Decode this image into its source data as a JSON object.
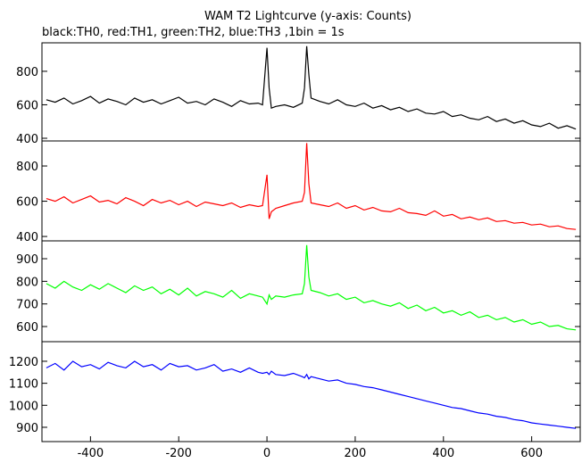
{
  "chart_data": [
    {
      "type": "line",
      "title": "WAM T2 Lightcurve (y-axis: Counts)",
      "subtitle": "black:TH0, red:TH1, green:TH2, blue:TH3 ,1bin = 1s",
      "x": [
        -500,
        -480,
        -460,
        -440,
        -420,
        -400,
        -380,
        -360,
        -340,
        -320,
        -300,
        -280,
        -260,
        -240,
        -220,
        -200,
        -180,
        -160,
        -140,
        -120,
        -100,
        -80,
        -60,
        -40,
        -20,
        -10,
        0,
        5,
        10,
        20,
        40,
        60,
        80,
        85,
        90,
        95,
        100,
        120,
        140,
        160,
        180,
        200,
        220,
        240,
        260,
        280,
        300,
        320,
        340,
        360,
        380,
        400,
        420,
        440,
        460,
        480,
        500,
        520,
        540,
        560,
        580,
        600,
        620,
        640,
        660,
        680,
        700
      ],
      "series": [
        {
          "color": "#000000",
          "values": [
            630,
            615,
            640,
            605,
            625,
            650,
            610,
            635,
            620,
            600,
            640,
            615,
            630,
            605,
            625,
            645,
            610,
            620,
            600,
            635,
            615,
            590,
            625,
            605,
            610,
            600,
            940,
            700,
            580,
            590,
            600,
            585,
            610,
            700,
            950,
            780,
            640,
            620,
            605,
            630,
            600,
            590,
            610,
            580,
            595,
            570,
            585,
            560,
            575,
            550,
            545,
            560,
            530,
            540,
            520,
            510,
            530,
            500,
            515,
            490,
            505,
            480,
            470,
            490,
            460,
            475,
            455
          ]
        }
      ],
      "xlim": [
        -510,
        710
      ],
      "ylim": [
        384,
        970
      ],
      "yticks": [
        400,
        600,
        800
      ]
    },
    {
      "type": "line",
      "x": [
        -500,
        -480,
        -460,
        -440,
        -420,
        -400,
        -380,
        -360,
        -340,
        -320,
        -300,
        -280,
        -260,
        -240,
        -220,
        -200,
        -180,
        -160,
        -140,
        -120,
        -100,
        -80,
        -60,
        -40,
        -20,
        -10,
        0,
        5,
        10,
        20,
        40,
        60,
        80,
        85,
        90,
        95,
        100,
        120,
        140,
        160,
        180,
        200,
        220,
        240,
        260,
        280,
        300,
        320,
        340,
        360,
        380,
        400,
        420,
        440,
        460,
        480,
        500,
        520,
        540,
        560,
        580,
        600,
        620,
        640,
        660,
        680,
        700
      ],
      "series": [
        {
          "color": "#ff0000",
          "values": [
            615,
            600,
            625,
            590,
            610,
            630,
            595,
            605,
            585,
            620,
            600,
            575,
            610,
            590,
            605,
            580,
            600,
            570,
            595,
            585,
            575,
            590,
            565,
            580,
            570,
            575,
            750,
            500,
            540,
            560,
            575,
            590,
            600,
            650,
            930,
            700,
            590,
            580,
            570,
            590,
            560,
            575,
            550,
            565,
            545,
            540,
            560,
            535,
            530,
            520,
            545,
            515,
            525,
            500,
            510,
            495,
            505,
            485,
            490,
            475,
            480,
            465,
            470,
            455,
            460,
            445,
            440
          ]
        }
      ],
      "xlim": [
        -510,
        710
      ],
      "ylim": [
        375,
        942
      ],
      "yticks": [
        400,
        600,
        800
      ]
    },
    {
      "type": "line",
      "x": [
        -500,
        -480,
        -460,
        -440,
        -420,
        -400,
        -380,
        -360,
        -340,
        -320,
        -300,
        -280,
        -260,
        -240,
        -220,
        -200,
        -180,
        -160,
        -140,
        -120,
        -100,
        -80,
        -60,
        -40,
        -20,
        -10,
        0,
        5,
        10,
        20,
        40,
        60,
        80,
        85,
        90,
        95,
        100,
        120,
        140,
        160,
        180,
        200,
        220,
        240,
        260,
        280,
        300,
        320,
        340,
        360,
        380,
        400,
        420,
        440,
        460,
        480,
        500,
        520,
        540,
        560,
        580,
        600,
        620,
        640,
        660,
        680,
        700
      ],
      "series": [
        {
          "color": "#00ff00",
          "values": [
            790,
            770,
            800,
            775,
            760,
            785,
            765,
            790,
            770,
            750,
            780,
            760,
            775,
            745,
            765,
            740,
            770,
            735,
            755,
            745,
            730,
            760,
            725,
            745,
            735,
            730,
            700,
            740,
            720,
            735,
            730,
            740,
            745,
            790,
            960,
            820,
            760,
            750,
            735,
            745,
            720,
            730,
            705,
            715,
            700,
            690,
            705,
            680,
            695,
            670,
            685,
            660,
            670,
            650,
            665,
            640,
            650,
            630,
            640,
            620,
            630,
            610,
            620,
            600,
            605,
            590,
            585
          ]
        }
      ],
      "xlim": [
        -510,
        710
      ],
      "ylim": [
        533,
        979
      ],
      "yticks": [
        600,
        700,
        800,
        900
      ]
    },
    {
      "type": "line",
      "x": [
        -500,
        -480,
        -460,
        -440,
        -420,
        -400,
        -380,
        -360,
        -340,
        -320,
        -300,
        -280,
        -260,
        -240,
        -220,
        -200,
        -180,
        -160,
        -140,
        -120,
        -100,
        -80,
        -60,
        -40,
        -20,
        -10,
        0,
        5,
        10,
        20,
        40,
        60,
        80,
        85,
        90,
        95,
        100,
        120,
        140,
        160,
        180,
        200,
        220,
        240,
        260,
        280,
        300,
        320,
        340,
        360,
        380,
        400,
        420,
        440,
        460,
        480,
        500,
        520,
        540,
        560,
        580,
        600,
        620,
        640,
        660,
        680,
        700
      ],
      "series": [
        {
          "color": "#0000ff",
          "values": [
            1170,
            1190,
            1160,
            1200,
            1175,
            1185,
            1165,
            1195,
            1180,
            1170,
            1200,
            1175,
            1185,
            1160,
            1190,
            1175,
            1180,
            1160,
            1170,
            1185,
            1155,
            1165,
            1150,
            1170,
            1150,
            1145,
            1150,
            1140,
            1155,
            1140,
            1135,
            1145,
            1130,
            1125,
            1140,
            1120,
            1130,
            1120,
            1110,
            1115,
            1100,
            1095,
            1085,
            1080,
            1070,
            1060,
            1050,
            1040,
            1030,
            1020,
            1010,
            1000,
            990,
            985,
            975,
            965,
            960,
            950,
            945,
            935,
            930,
            920,
            915,
            910,
            905,
            900,
            895
          ]
        }
      ],
      "xlim": [
        -510,
        710
      ],
      "ylim": [
        835,
        1289
      ],
      "yticks": [
        900,
        1000,
        1100,
        1200
      ],
      "xticks": [
        -400,
        -200,
        0,
        200,
        400,
        600
      ]
    }
  ]
}
